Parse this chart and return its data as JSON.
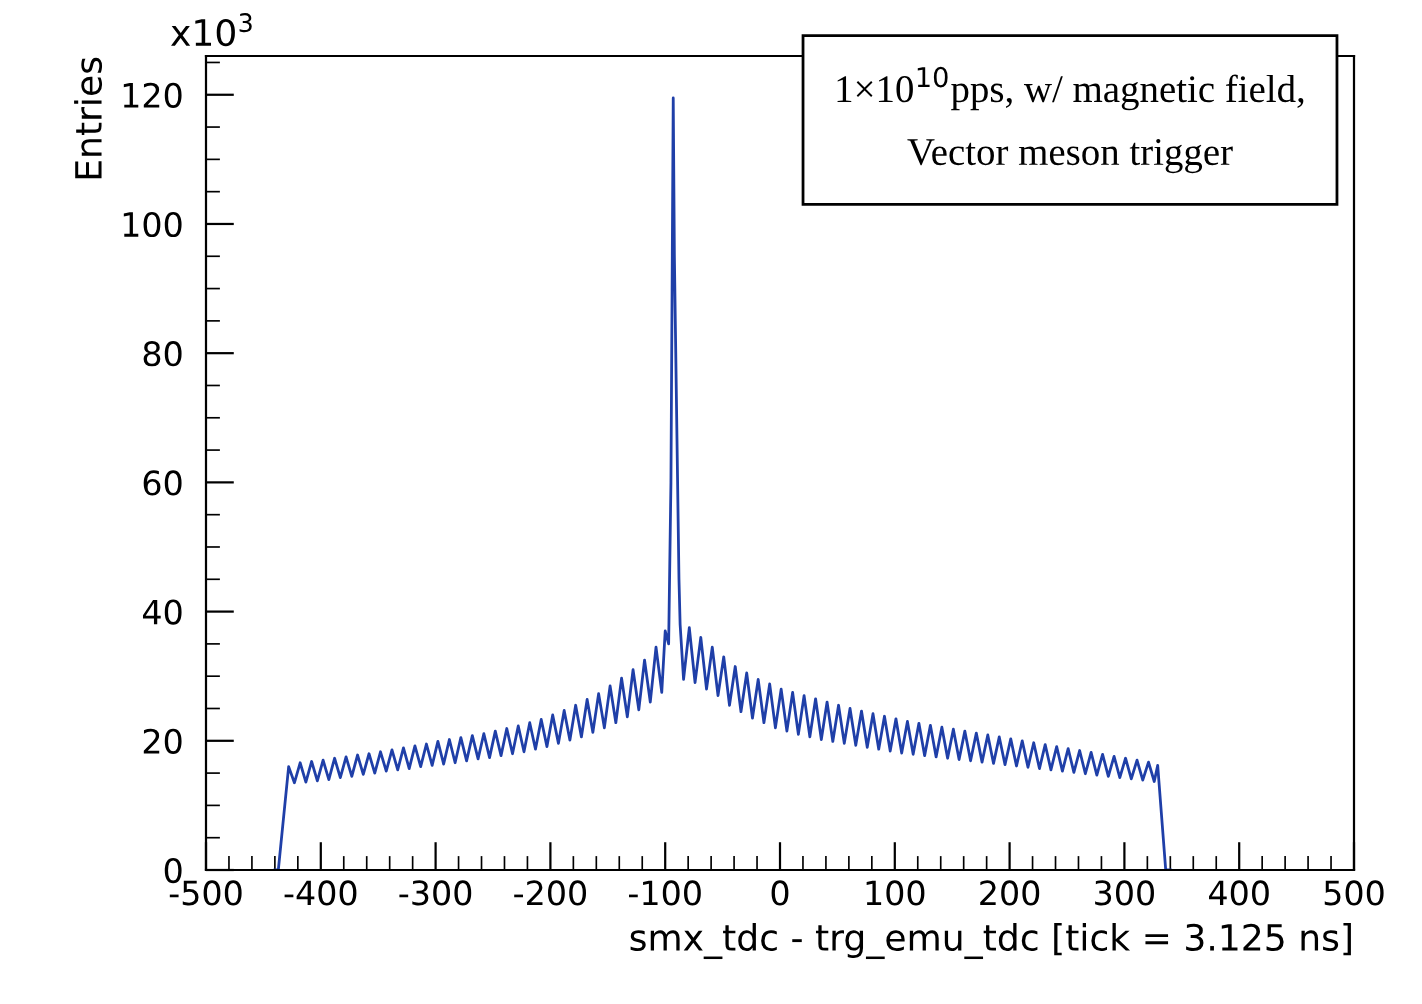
{
  "chart_data": {
    "type": "line",
    "xlabel": "smx_tdc - trg_emu_tdc [tick = 3.125 ns]",
    "ylabel": "Entries",
    "annotations": [
      "x10$^{3}$",
      "1×10$^{10}$pps, w/ magnetic field,\nVector meson trigger"
    ],
    "xlim": [
      -500,
      500
    ],
    "xticks": [
      -500,
      -400,
      -300,
      -200,
      -100,
      0,
      100,
      200,
      300,
      400,
      500
    ],
    "ylim": [
      0,
      126
    ],
    "yticks": [
      0,
      20,
      40,
      60,
      80,
      100,
      120
    ],
    "grid": false,
    "marker": "none",
    "line_style": "solid",
    "series": [
      {
        "color": "#1f3fa8",
        "x": [
          -440,
          -437,
          -428,
          -423,
          -418,
          -413,
          -408,
          -403,
          -398,
          -393,
          -388,
          -383,
          -378,
          -373,
          -368,
          -363,
          -358,
          -353,
          -348,
          -343,
          -338,
          -333,
          -328,
          -323,
          -318,
          -313,
          -308,
          -303,
          -298,
          -293,
          -288,
          -283,
          -278,
          -273,
          -268,
          -263,
          -258,
          -253,
          -248,
          -243,
          -238,
          -233,
          -228,
          -223,
          -218,
          -213,
          -208,
          -203,
          -198,
          -193,
          -188,
          -183,
          -178,
          -173,
          -168,
          -163,
          -158,
          -153,
          -148,
          -143,
          -138,
          -133,
          -128,
          -123,
          -118,
          -113,
          -108,
          -103,
          -100,
          -97,
          -95,
          -93,
          -92,
          -90,
          -88,
          -87,
          -84,
          -79,
          -74,
          -69,
          -64,
          -59,
          -54,
          -49,
          -44,
          -39,
          -34,
          -29,
          -24,
          -19,
          -14,
          -9,
          -4,
          1,
          6,
          11,
          16,
          21,
          26,
          31,
          36,
          41,
          46,
          51,
          56,
          61,
          66,
          71,
          76,
          81,
          86,
          91,
          96,
          101,
          106,
          111,
          116,
          121,
          126,
          131,
          136,
          141,
          146,
          151,
          156,
          161,
          166,
          171,
          176,
          181,
          186,
          191,
          196,
          201,
          206,
          211,
          216,
          221,
          226,
          231,
          236,
          241,
          246,
          251,
          256,
          261,
          266,
          271,
          276,
          281,
          286,
          291,
          296,
          301,
          306,
          311,
          316,
          321,
          326,
          329,
          336,
          340
        ],
        "values": [
          0,
          0,
          16.0,
          13.5,
          16.6,
          13.6,
          16.8,
          13.8,
          17.0,
          14.0,
          17.3,
          14.3,
          17.5,
          14.5,
          17.8,
          14.8,
          18.0,
          15.0,
          18.3,
          15.3,
          18.6,
          15.5,
          18.9,
          15.7,
          19.2,
          16.0,
          19.5,
          16.2,
          19.9,
          16.4,
          20.2,
          16.6,
          20.5,
          16.9,
          20.8,
          17.2,
          21.1,
          17.4,
          21.5,
          17.7,
          21.9,
          18.0,
          22.3,
          18.3,
          22.8,
          18.7,
          23.3,
          19.1,
          24.0,
          19.6,
          24.7,
          20.1,
          25.5,
          20.6,
          26.4,
          21.3,
          27.3,
          22.0,
          28.5,
          22.8,
          29.7,
          23.7,
          31.0,
          24.8,
          32.5,
          26.0,
          34.5,
          27.5,
          37,
          35,
          60,
          119.5,
          95,
          70,
          45,
          38,
          29.5,
          37.5,
          29,
          36,
          28,
          34.5,
          27,
          33,
          25.5,
          31.5,
          24.5,
          30.5,
          23.5,
          29.5,
          22.8,
          28.8,
          22,
          28,
          21.5,
          27.5,
          21,
          27,
          20.6,
          26.5,
          20.2,
          26,
          19.9,
          25.5,
          19.6,
          25,
          19.3,
          24.6,
          19,
          24.2,
          18.7,
          23.8,
          18.4,
          23.4,
          18.1,
          23,
          17.9,
          22.7,
          17.7,
          22.4,
          17.5,
          22.1,
          17.3,
          21.8,
          17.1,
          21.5,
          16.9,
          21.2,
          16.7,
          20.9,
          16.5,
          20.6,
          16.3,
          20.3,
          16.1,
          20,
          15.9,
          19.7,
          15.7,
          19.4,
          15.5,
          19.1,
          15.3,
          18.8,
          15.1,
          18.5,
          14.9,
          18.2,
          14.7,
          17.9,
          14.5,
          17.6,
          14.3,
          17.3,
          14.1,
          17,
          13.9,
          16.7,
          13.7,
          16.2,
          0,
          0
        ]
      }
    ]
  }
}
